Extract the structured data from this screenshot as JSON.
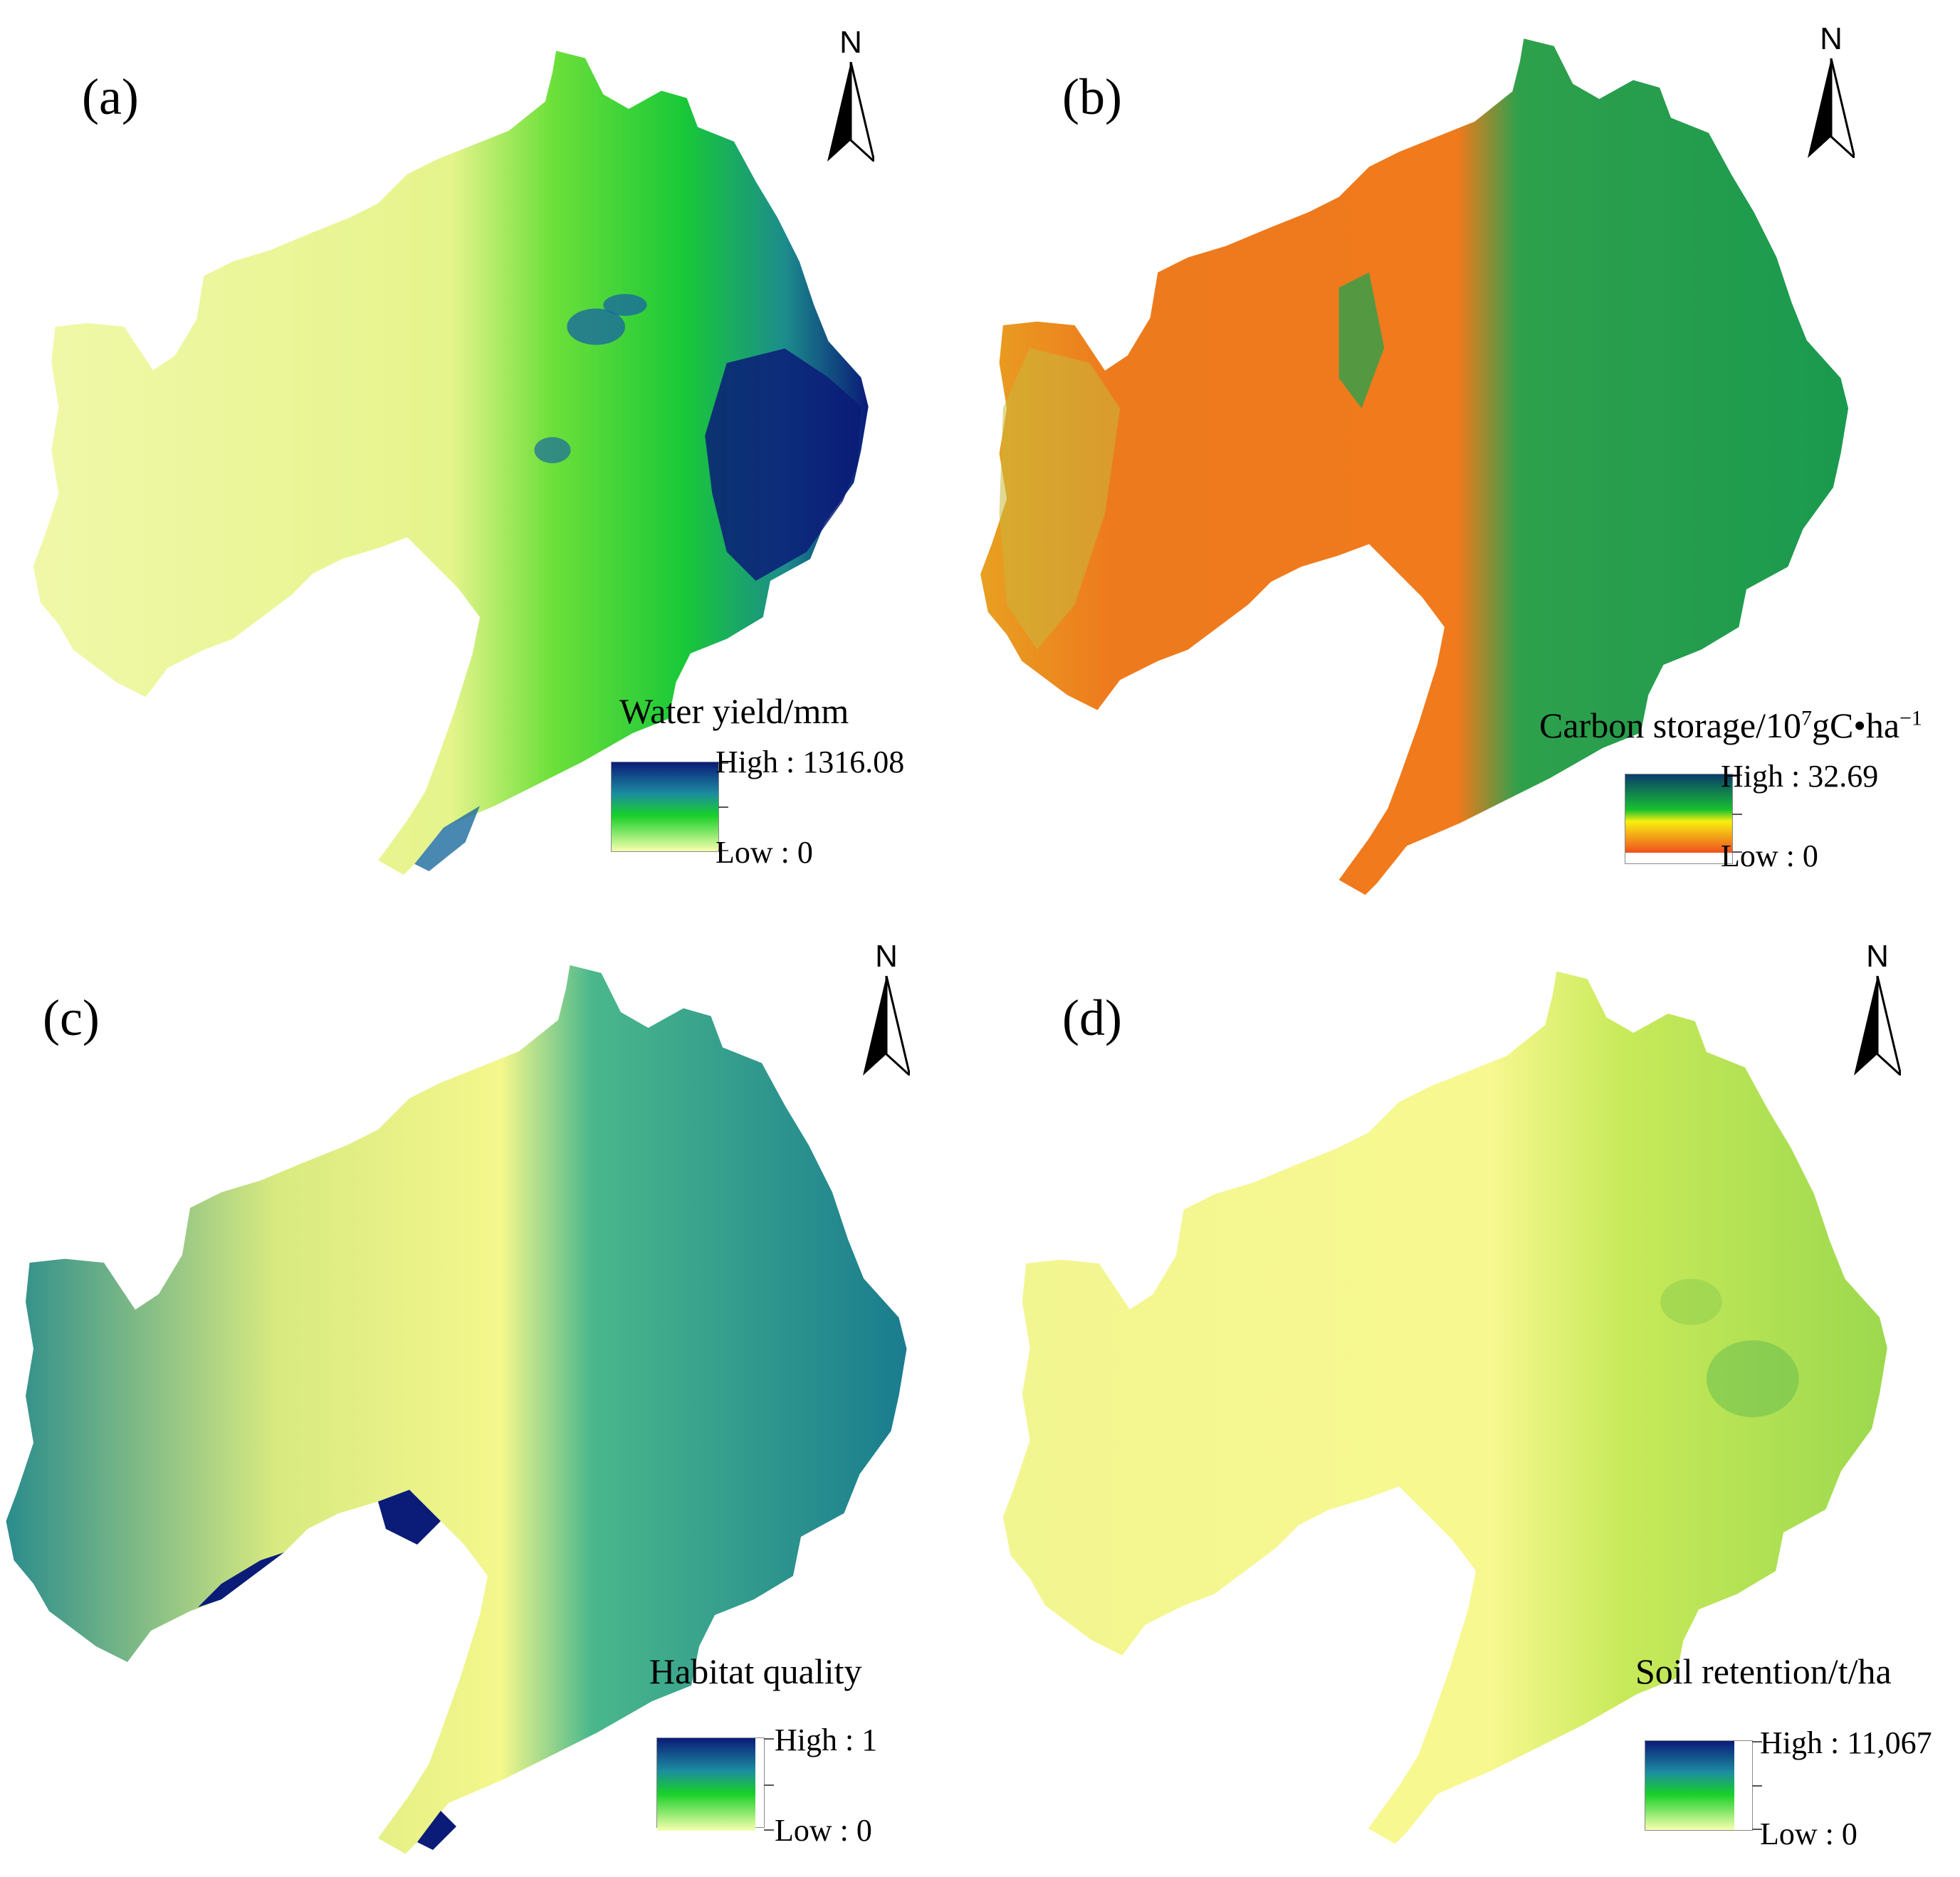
{
  "panels": [
    {
      "id": "a",
      "label": "(a)",
      "north": "N",
      "legend": {
        "title": "Water yield/mm",
        "high": "High : 1316.08",
        "low": "Low : 0"
      },
      "colors": {
        "low": "#f2fba0",
        "mid": "#1ed21e",
        "high": "#0a1b78",
        "accent": "#1a6a9e"
      }
    },
    {
      "id": "b",
      "label": "(b)",
      "north": "N",
      "legend": {
        "title_main": "Carbon storage/10",
        "title_exp": "7",
        "title_rest": "gC•ha",
        "title_exp2": "−1",
        "high": "High : 32.69",
        "low": "Low : 0"
      },
      "colors": {
        "low": "#ee6a1e",
        "mid": "#f8ee10",
        "high": "#0a5a7a",
        "accent": "#1c9c4a"
      }
    },
    {
      "id": "c",
      "label": "(c)",
      "north": "N",
      "legend": {
        "title": "Habitat quality",
        "high": "High : 1",
        "low": "Low : 0"
      },
      "colors": {
        "low": "#f4f78c",
        "mid": "#2da07a",
        "high": "#0a1b78",
        "accent": "#2a7c9c"
      }
    },
    {
      "id": "d",
      "label": "(d)",
      "north": "N",
      "legend": {
        "title": "Soil retention/t/ha",
        "high": "High : 11,067",
        "low": "Low : 0"
      },
      "colors": {
        "low": "#f8f890",
        "mid": "#b5e04a",
        "high": "#0a1b78",
        "accent": "#7cc44a"
      }
    }
  ]
}
